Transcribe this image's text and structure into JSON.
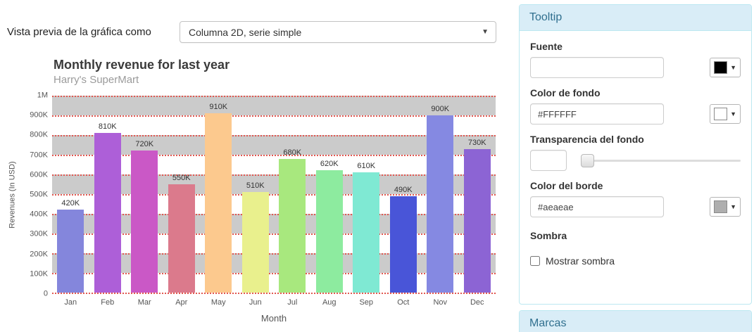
{
  "preview": {
    "label": "Vista previa de la gráfica como",
    "dropdown_value": "Columna 2D, serie simple"
  },
  "chart_data": {
    "type": "bar",
    "title": "Monthly revenue for last year",
    "subtitle": "Harry's SuperMart",
    "xlabel": "Month",
    "ylabel": "Revenues (In USD)",
    "categories": [
      "Jan",
      "Feb",
      "Mar",
      "Apr",
      "May",
      "Jun",
      "Jul",
      "Aug",
      "Sep",
      "Oct",
      "Nov",
      "Dec"
    ],
    "values": [
      420000,
      810000,
      720000,
      550000,
      910000,
      510000,
      680000,
      620000,
      610000,
      490000,
      900000,
      730000
    ],
    "value_labels": [
      "420K",
      "810K",
      "720K",
      "550K",
      "910K",
      "510K",
      "680K",
      "620K",
      "610K",
      "490K",
      "900K",
      "730K"
    ],
    "ylim": [
      0,
      1000000
    ],
    "y_ticks": [
      "0",
      "100K",
      "200K",
      "300K",
      "400K",
      "500K",
      "600K",
      "700K",
      "800K",
      "900K",
      "1M"
    ],
    "bar_colors": [
      "#8486dc",
      "#ad5fd8",
      "#ca58c6",
      "#db7a8c",
      "#fcc98e",
      "#e9f08d",
      "#a8e87e",
      "#8deb9f",
      "#7fe9d3",
      "#4955d8",
      "#8589e2",
      "#8c64d4"
    ],
    "grid": {
      "band_color_odd": "#ffffff",
      "band_color_even": "#cbcbcb",
      "gridline_color": "#e25750",
      "legend": "none"
    }
  },
  "tooltip_panel": {
    "title": "Tooltip",
    "fields": {
      "fuente": {
        "label": "Fuente",
        "value": "",
        "swatch_color": "#000000"
      },
      "color_fondo": {
        "label": "Color de fondo",
        "value": "#FFFFFF",
        "swatch_color": "#FFFFFF"
      },
      "transparencia": {
        "label": "Transparencia del fondo",
        "value": ""
      },
      "color_borde": {
        "label": "Color del borde",
        "value": "#aeaeae",
        "swatch_color": "#aeaeae"
      },
      "sombra": {
        "label": "Sombra",
        "checkbox_label": "Mostrar sombra",
        "checked": false
      }
    }
  },
  "marcas_panel": {
    "title": "Marcas"
  }
}
